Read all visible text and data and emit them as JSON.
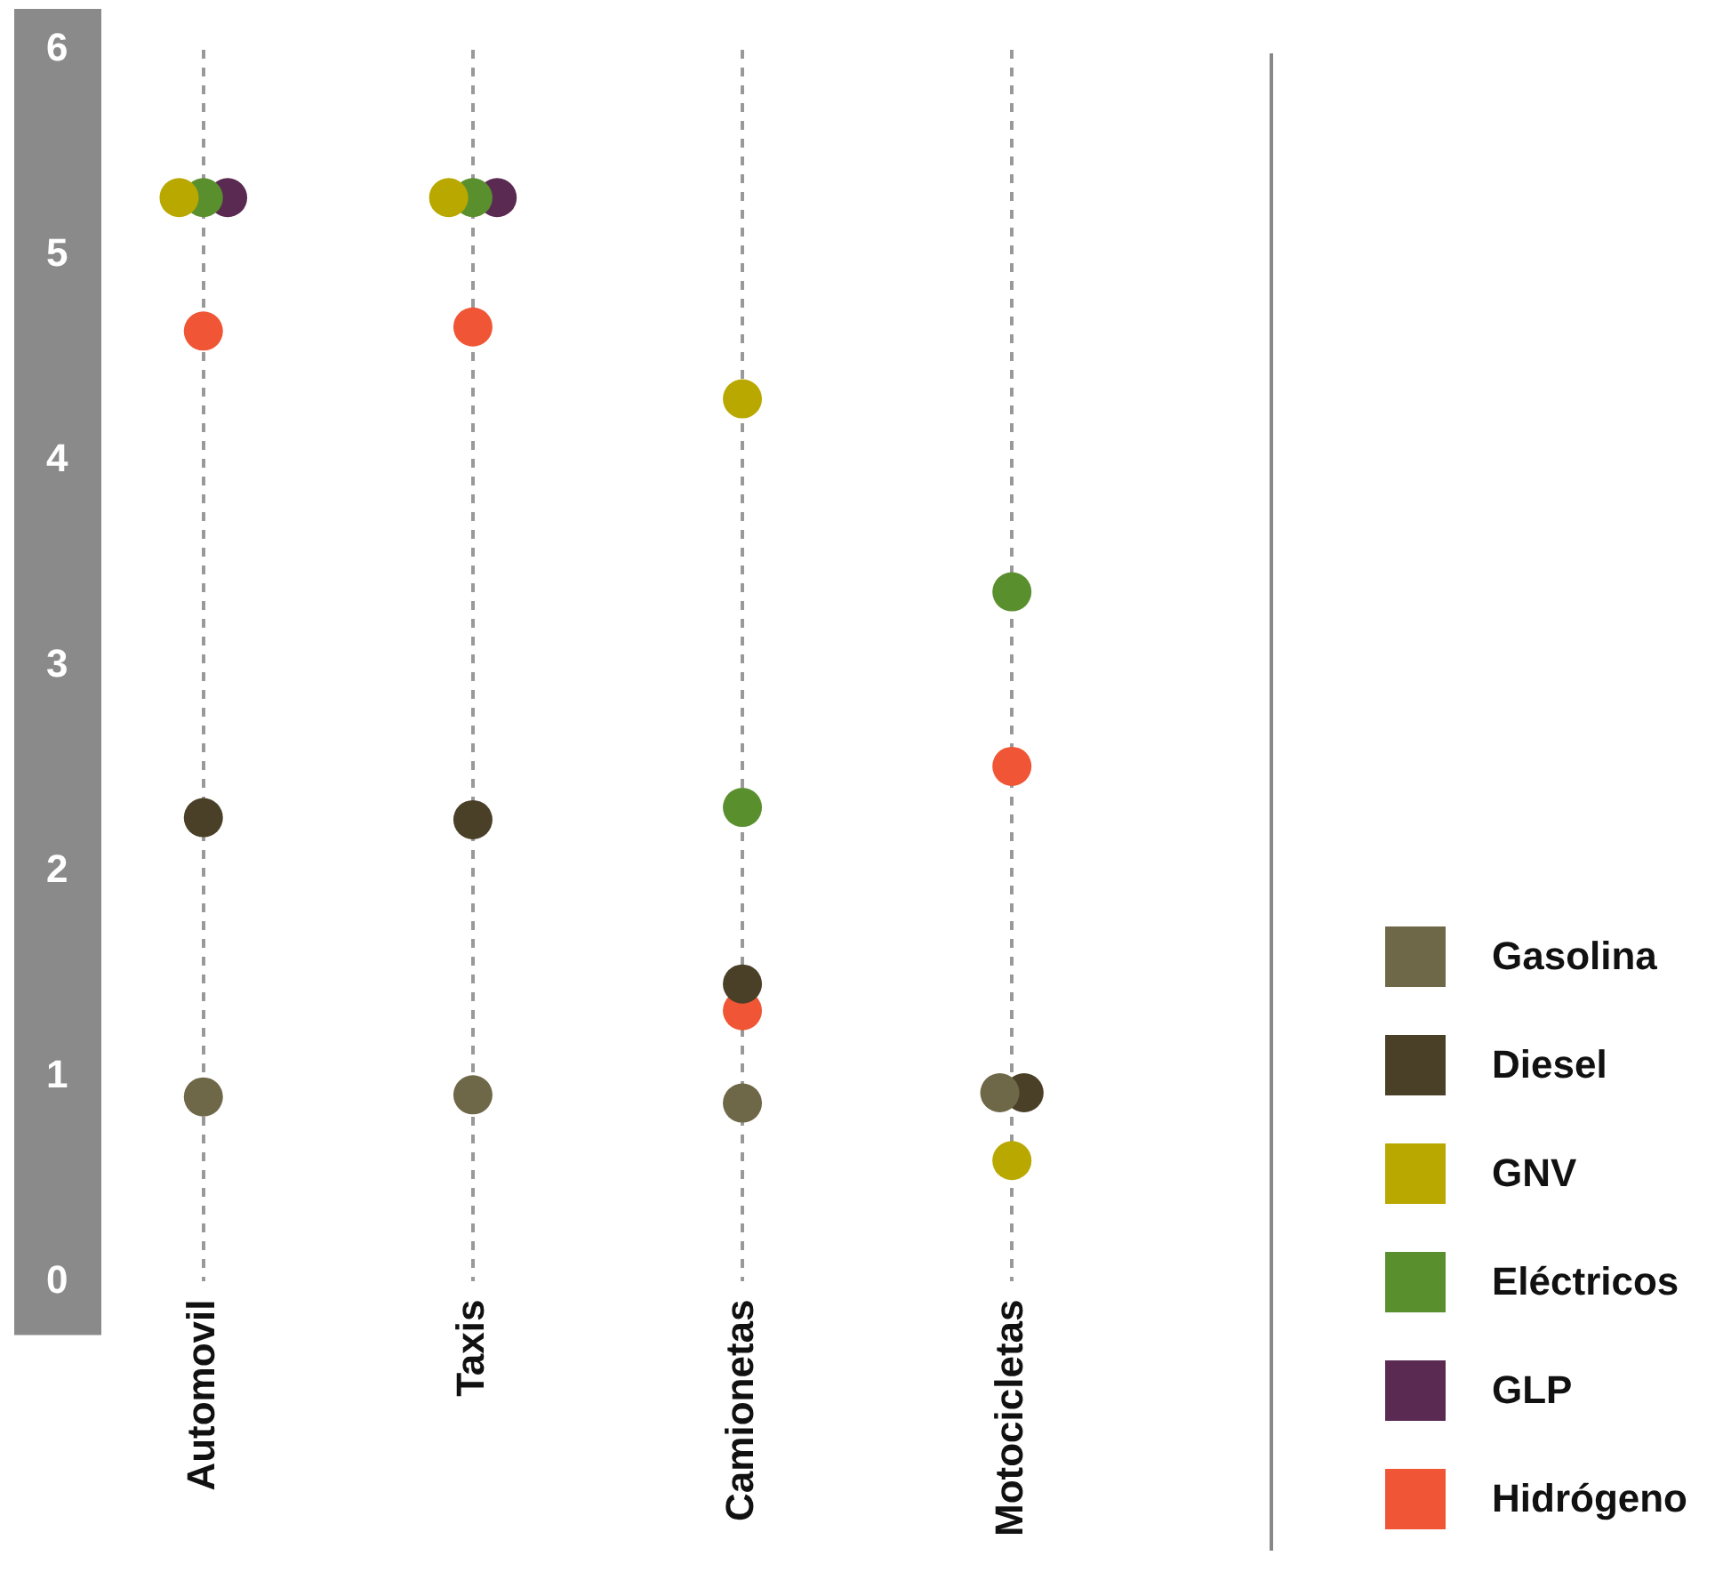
{
  "chart_data": {
    "type": "scatter",
    "categories": [
      "Automovil",
      "Taxis",
      "Camionetas",
      "Motocicletas"
    ],
    "series": [
      {
        "name": "Gasolina",
        "color": "#6e6848",
        "values": [
          0.9,
          0.91,
          0.87,
          0.92
        ]
      },
      {
        "name": "Diesel",
        "color": "#4a3f27",
        "values": [
          2.26,
          2.25,
          1.45,
          0.92
        ]
      },
      {
        "name": "GNV",
        "color": "#b8a800",
        "values": [
          5.28,
          5.28,
          4.3,
          0.59
        ]
      },
      {
        "name": "Eléctricos",
        "color": "#5a8f2e",
        "values": [
          5.28,
          5.28,
          2.31,
          3.36
        ]
      },
      {
        "name": "GLP",
        "color": "#5a2a52",
        "values": [
          5.28,
          5.28,
          null,
          null
        ]
      },
      {
        "name": "Hidrógeno",
        "color": "#f05535",
        "values": [
          4.63,
          4.65,
          1.32,
          2.51
        ]
      }
    ],
    "ylim": [
      0,
      6
    ],
    "yticks": [
      0,
      1,
      2,
      3,
      4,
      5,
      6
    ],
    "grid": "x",
    "legend": "right",
    "marker": "circle"
  }
}
